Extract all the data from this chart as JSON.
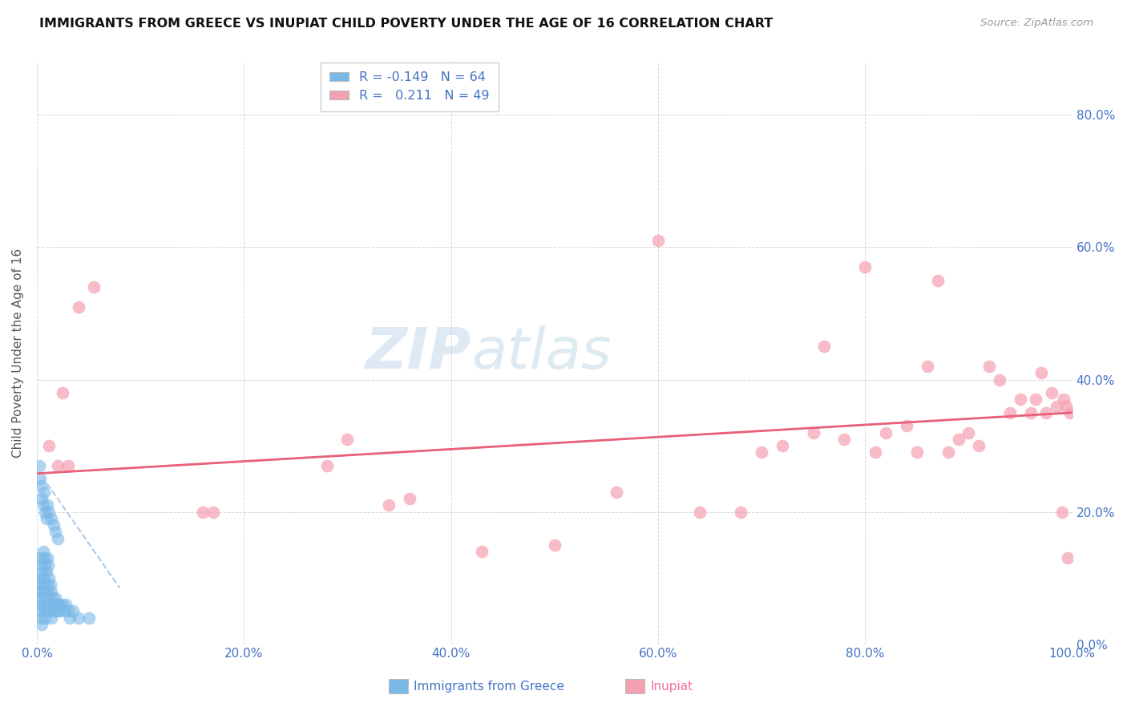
{
  "title": "IMMIGRANTS FROM GREECE VS INUPIAT CHILD POVERTY UNDER THE AGE OF 16 CORRELATION CHART",
  "source": "Source: ZipAtlas.com",
  "ylabel": "Child Poverty Under the Age of 16",
  "xlim": [
    0.0,
    1.0
  ],
  "ylim": [
    0.0,
    0.88
  ],
  "xticks": [
    0.0,
    0.2,
    0.4,
    0.6,
    0.8,
    1.0
  ],
  "yticks": [
    0.0,
    0.2,
    0.4,
    0.6,
    0.8
  ],
  "xtick_labels": [
    "0.0%",
    "20.0%",
    "40.0%",
    "60.0%",
    "80.0%",
    "100.0%"
  ],
  "ytick_labels": [
    "0.0%",
    "20.0%",
    "40.0%",
    "60.0%",
    "80.0%"
  ],
  "blue_color": "#7ab8e8",
  "pink_color": "#f4a0b0",
  "blue_line_color": "#aaccee",
  "pink_line_color": "#e8607a",
  "watermark_zip": "ZIP",
  "watermark_atlas": "atlas",
  "blue_scatter_x": [
    0.001,
    0.002,
    0.002,
    0.003,
    0.003,
    0.003,
    0.004,
    0.004,
    0.004,
    0.005,
    0.005,
    0.005,
    0.006,
    0.006,
    0.006,
    0.007,
    0.007,
    0.007,
    0.008,
    0.008,
    0.008,
    0.009,
    0.009,
    0.01,
    0.01,
    0.01,
    0.011,
    0.011,
    0.012,
    0.012,
    0.013,
    0.013,
    0.014,
    0.014,
    0.015,
    0.016,
    0.017,
    0.018,
    0.019,
    0.02,
    0.021,
    0.022,
    0.024,
    0.026,
    0.028,
    0.03,
    0.032,
    0.035,
    0.04,
    0.05,
    0.002,
    0.003,
    0.004,
    0.005,
    0.006,
    0.007,
    0.008,
    0.009,
    0.01,
    0.012,
    0.014,
    0.016,
    0.018,
    0.02
  ],
  "blue_scatter_y": [
    0.08,
    0.1,
    0.06,
    0.13,
    0.09,
    0.05,
    0.12,
    0.08,
    0.04,
    0.11,
    0.07,
    0.03,
    0.14,
    0.1,
    0.06,
    0.13,
    0.09,
    0.05,
    0.12,
    0.08,
    0.04,
    0.11,
    0.07,
    0.13,
    0.09,
    0.05,
    0.12,
    0.08,
    0.1,
    0.06,
    0.09,
    0.05,
    0.08,
    0.04,
    0.07,
    0.06,
    0.05,
    0.07,
    0.06,
    0.05,
    0.06,
    0.05,
    0.06,
    0.05,
    0.06,
    0.05,
    0.04,
    0.05,
    0.04,
    0.04,
    0.27,
    0.25,
    0.24,
    0.22,
    0.21,
    0.23,
    0.2,
    0.19,
    0.21,
    0.2,
    0.19,
    0.18,
    0.17,
    0.16
  ],
  "pink_scatter_x": [
    0.012,
    0.02,
    0.025,
    0.03,
    0.04,
    0.055,
    0.16,
    0.17,
    0.28,
    0.3,
    0.34,
    0.36,
    0.43,
    0.5,
    0.56,
    0.6,
    0.64,
    0.68,
    0.7,
    0.72,
    0.75,
    0.76,
    0.78,
    0.8,
    0.81,
    0.82,
    0.84,
    0.85,
    0.86,
    0.87,
    0.88,
    0.89,
    0.9,
    0.91,
    0.92,
    0.93,
    0.94,
    0.95,
    0.96,
    0.965,
    0.97,
    0.975,
    0.98,
    0.985,
    0.99,
    0.992,
    0.994,
    0.996,
    0.998
  ],
  "pink_scatter_y": [
    0.3,
    0.27,
    0.38,
    0.27,
    0.51,
    0.54,
    0.2,
    0.2,
    0.27,
    0.31,
    0.21,
    0.22,
    0.14,
    0.15,
    0.23,
    0.61,
    0.2,
    0.2,
    0.29,
    0.3,
    0.32,
    0.45,
    0.31,
    0.57,
    0.29,
    0.32,
    0.33,
    0.29,
    0.42,
    0.55,
    0.29,
    0.31,
    0.32,
    0.3,
    0.42,
    0.4,
    0.35,
    0.37,
    0.35,
    0.37,
    0.41,
    0.35,
    0.38,
    0.36,
    0.2,
    0.37,
    0.36,
    0.13,
    0.35
  ],
  "blue_line_x": [
    0.0,
    0.08
  ],
  "blue_line_y": [
    0.265,
    0.085
  ],
  "pink_line_x": [
    0.0,
    1.0
  ],
  "pink_line_y": [
    0.258,
    0.35
  ]
}
